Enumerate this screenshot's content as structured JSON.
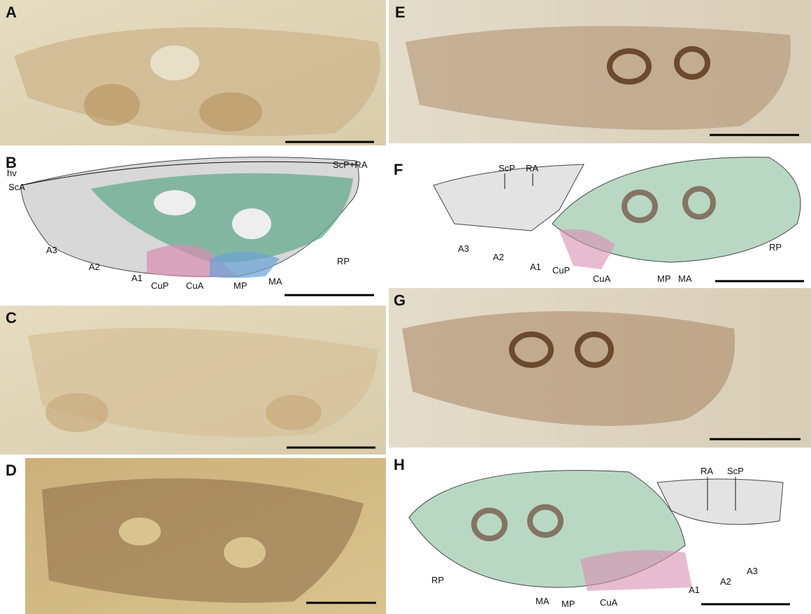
{
  "panels": [
    {
      "letter": "A"
    },
    {
      "letter": "B",
      "labels": [
        "hv",
        "ScA",
        "ScP+RA",
        "A3",
        "A2",
        "A1",
        "CuP",
        "CuA",
        "MP",
        "MA",
        "RP"
      ]
    },
    {
      "letter": "C"
    },
    {
      "letter": "D"
    },
    {
      "letter": "E"
    },
    {
      "letter": "F",
      "labels": [
        "ScP",
        "RA",
        "A3",
        "A2",
        "A1",
        "CuP",
        "CuA",
        "MP",
        "MA",
        "RP"
      ]
    },
    {
      "letter": "G"
    },
    {
      "letter": "H",
      "labels": [
        "RA",
        "ScP",
        "RP",
        "MA",
        "MP",
        "CuA",
        "A1",
        "A2",
        "A3"
      ]
    }
  ]
}
